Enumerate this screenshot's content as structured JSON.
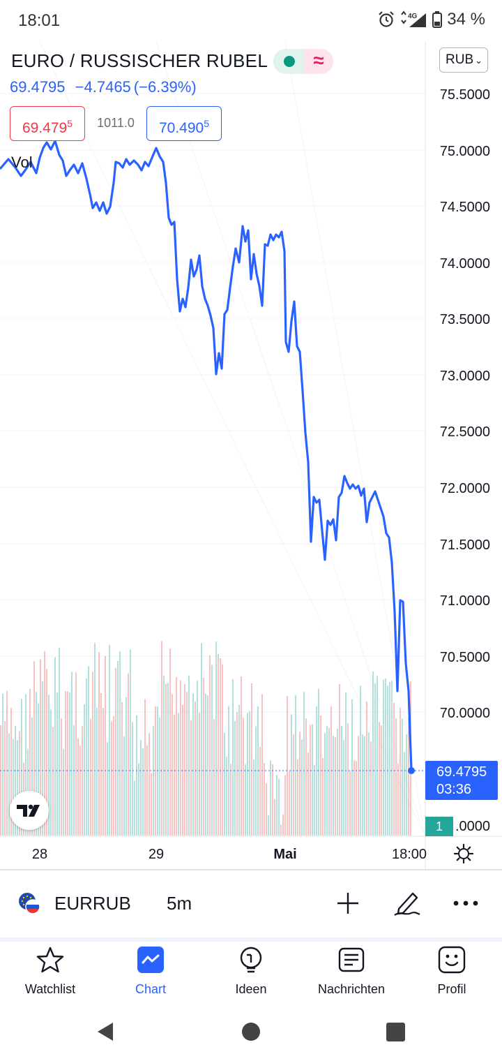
{
  "status_bar": {
    "time": "18:01",
    "network": "4G",
    "battery": "34 %",
    "icons": [
      "alarm-icon",
      "signal-icon",
      "battery-icon"
    ]
  },
  "header": {
    "title": "EURO / RUSSISCHER RUBEL",
    "last_price": "69.4795",
    "change": "−4.7465",
    "change_percent": "(−6.39%)",
    "currency_button": "RUB",
    "market_status_icon": "market-open-dot-icon",
    "approx_icon_text": "≈"
  },
  "quote": {
    "sell_main": "69.479",
    "sell_pip": "5",
    "spread": "1011.0",
    "buy_main": "70.490",
    "buy_pip": "5"
  },
  "chart": {
    "vol_label": "Vol",
    "price_axis": [
      "75.5000",
      "75.0000",
      "74.5000",
      "74.0000",
      "73.5000",
      "73.0000",
      "72.5000",
      "72.0000",
      "71.5000",
      "71.0000",
      "70.5000",
      "70.0000",
      ".0000"
    ],
    "time_axis": [
      "28",
      "29",
      "Mai",
      "18:00"
    ],
    "current_price": "69.4795",
    "countdown": "03:36",
    "volume_tag": "1",
    "colors": {
      "line": "#2962ff",
      "up_volume": "#26a69a",
      "down_volume": "#ef5350",
      "tag": "#2962ff"
    }
  },
  "toolbar": {
    "symbol": "EURRUB",
    "interval": "5m",
    "icons": [
      "add-icon",
      "drawing-pen-icon",
      "more-icon"
    ]
  },
  "bottom_nav": [
    {
      "label": "Watchlist",
      "icon": "star-icon",
      "active": false
    },
    {
      "label": "Chart",
      "icon": "chart-icon",
      "active": true
    },
    {
      "label": "Ideen",
      "icon": "lightbulb-icon",
      "active": false
    },
    {
      "label": "Nachrichten",
      "icon": "news-icon",
      "active": false
    },
    {
      "label": "Profil",
      "icon": "smiley-icon",
      "active": false
    }
  ]
}
